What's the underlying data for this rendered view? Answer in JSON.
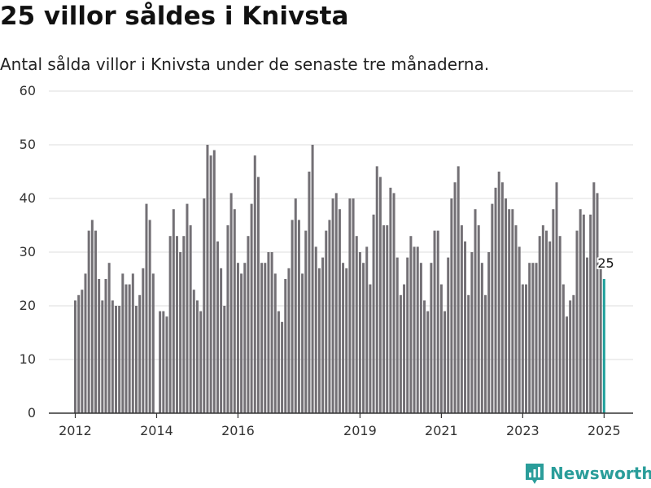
{
  "header": {
    "title": "25 villor såldes i Knivsta",
    "subtitle": "Antal sålda villor i Knivsta under de senaste tre månaderna."
  },
  "brand": {
    "name": "Newsworthy",
    "icon": "newsworthy-logo-icon"
  },
  "colors": {
    "bar": "#737075",
    "highlight": "#21a19c",
    "grid": "#dddddd",
    "axis": "#333333",
    "brand": "#2a9d9a"
  },
  "chart_data": {
    "type": "bar",
    "title": "25 villor såldes i Knivsta",
    "xlabel": "",
    "ylabel": "",
    "ylim": [
      0,
      60
    ],
    "yticks": [
      0,
      10,
      20,
      30,
      40,
      50,
      60
    ],
    "xticks": [
      "2012",
      "2014",
      "2016",
      "2019",
      "2021",
      "2023",
      "2025"
    ],
    "grid": true,
    "legend": "none",
    "highlight_label": "25",
    "series": [
      {
        "values": [
          21,
          22,
          23,
          26,
          34,
          36,
          34,
          25,
          21,
          25,
          28,
          21,
          20,
          20,
          26,
          24,
          24,
          26,
          20,
          22,
          27,
          39,
          36,
          26,
          0,
          19,
          19,
          18,
          33,
          38,
          33,
          30,
          33,
          39,
          35,
          23,
          21,
          19,
          40,
          50,
          48,
          49,
          32,
          27,
          20,
          35,
          41,
          38,
          28,
          26,
          28,
          33,
          39,
          48,
          44,
          28,
          28,
          30,
          30,
          26,
          19,
          17,
          25,
          27,
          36,
          40,
          36,
          26,
          34,
          45,
          50,
          31,
          27,
          29,
          34,
          36,
          40,
          41,
          38,
          28,
          27,
          40,
          40,
          33,
          30,
          28,
          31,
          24,
          37,
          46,
          44,
          35,
          35,
          42,
          41,
          29,
          22,
          24,
          29,
          33,
          31,
          31,
          28,
          21,
          19,
          28,
          34,
          34,
          24,
          19,
          29,
          40,
          43,
          46,
          35,
          32,
          22,
          30,
          38,
          35,
          28,
          22,
          30,
          39,
          42,
          45,
          43,
          40,
          38,
          38,
          35,
          31,
          24,
          24,
          28,
          28,
          28,
          33,
          35,
          34,
          32,
          38,
          43,
          33,
          24,
          18,
          21,
          22,
          34,
          38,
          37,
          29,
          37,
          43,
          41,
          27,
          25
        ],
        "highlight_last": true
      }
    ]
  }
}
